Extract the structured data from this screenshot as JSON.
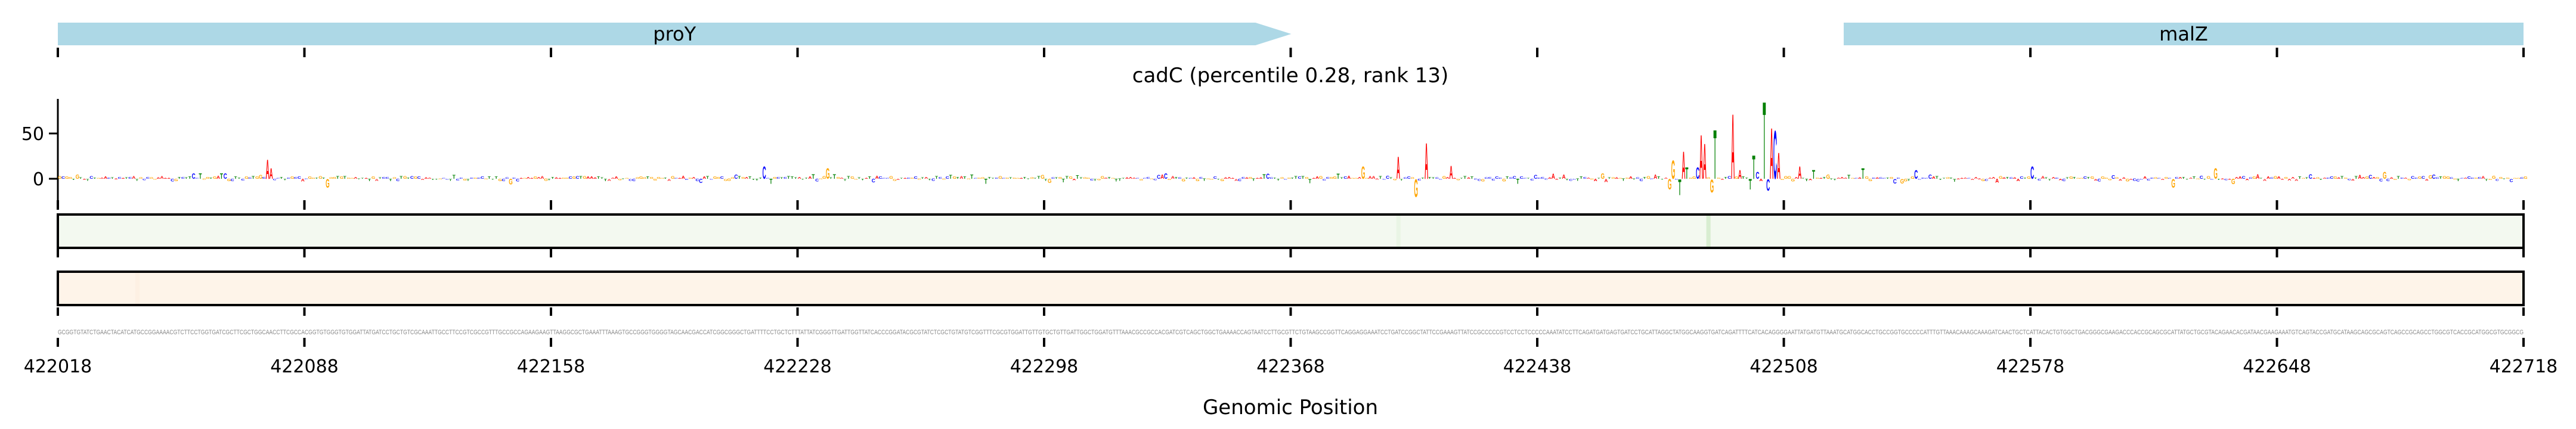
{
  "chart_data": {
    "type": "sequence-logo",
    "title": "cadC (percentile 0.28, rank 13)",
    "xlabel": "Genomic Position",
    "xlim": [
      422018,
      422718
    ],
    "x_ticks": [
      422018,
      422088,
      422158,
      422228,
      422298,
      422368,
      422438,
      422508,
      422578,
      422648,
      422718
    ],
    "x_tick_labels": [
      "422018",
      "422088",
      "422158",
      "422228",
      "422298",
      "422368",
      "422438",
      "422508",
      "422578",
      "422648",
      "422718"
    ],
    "ylim": [
      -20,
      90
    ],
    "y_ticks": [
      0,
      50
    ],
    "y_tick_labels": [
      "0",
      "50"
    ],
    "genes": [
      {
        "name": "proY",
        "start": 422018,
        "end": 422358,
        "strand": "+"
      },
      {
        "name": "malZ",
        "start": 422525,
        "end": 422718,
        "strand": "+"
      }
    ],
    "sequence": "GCGGTGTATCTGAACTACATCATGCCGGAAAACGTCTTCCTGGTGATCGCTTCGCTGGCAACCTTCGCCACGGTGTGGGTGTGGATTATGATCCTGCTGTCGCAAATTGCCTTCCGTCGCCGTTTGCCGCCAGAAGAAGTTAAGGCGCTGAAATTTAAAGTGCCGGGTGGGGTAGCAACGACCATCGGCGGGCTGATTTTCCTGCTCTTTATTATCGGGTTGATTGGTTATCACCCGGATACGCGTATCTCGCTGTATGTCGGTTTCGCGTGGATTGTTGTGCTGTTGATTGGCTGGATGTTTAAACGCCGCCACGATCGTCAGCTGGCTGAAAACCAGTAATCCTTGCGTTCTGTAAGCCGGTTCAGGAGGAAATCCTGATCCGGCTATTCCGAAAGTTATCCGCCCCCGTCCTCCTCCCCCAAATATCCTTCAGATGATGAGTGATCCTGCATTAGGCTATGGCAAGGTGATCAGATTTTCATCACAGGGGAATTATGATGTTAAATGCATGGCACCTGCCGGTGCCCCCATTTGTTAAACAAAGCAAAGATCAACTGCTCATTACACTGTGGCTGACGGGCGAAGACCCACCGCAGCGCATTATGCTGCGTACAGAACACGATAACGAAGAAATGTCAGTACCGATGCATAAGCAGCGCAGTCAGCCGCAGCCTGGCGTCACCGCATGGCGTGCGGCG",
    "attribution_peaks": [
      {
        "offset": 59,
        "value": 22
      },
      {
        "offset": 60,
        "value": 12
      },
      {
        "offset": 76,
        "value": -10
      },
      {
        "offset": 200,
        "value": 14
      },
      {
        "offset": 218,
        "value": 12
      },
      {
        "offset": 370,
        "value": 14
      },
      {
        "offset": 380,
        "value": 25
      },
      {
        "offset": 385,
        "value": -20
      },
      {
        "offset": 388,
        "value": 41
      },
      {
        "offset": 395,
        "value": 15
      },
      {
        "offset": 457,
        "value": -12
      },
      {
        "offset": 458,
        "value": 21
      },
      {
        "offset": 460,
        "value": -18
      },
      {
        "offset": 461,
        "value": 31
      },
      {
        "offset": 462,
        "value": 13
      },
      {
        "offset": 465,
        "value": 13
      },
      {
        "offset": 466,
        "value": 50
      },
      {
        "offset": 467,
        "value": 40
      },
      {
        "offset": 469,
        "value": -15
      },
      {
        "offset": 470,
        "value": 56
      },
      {
        "offset": 475,
        "value": 74
      },
      {
        "offset": 477,
        "value": 10
      },
      {
        "offset": 480,
        "value": -12
      },
      {
        "offset": 481,
        "value": 27
      },
      {
        "offset": 482,
        "value": 8
      },
      {
        "offset": 484,
        "value": 88
      },
      {
        "offset": 485,
        "value": -13
      },
      {
        "offset": 486,
        "value": 58
      },
      {
        "offset": 487,
        "value": 55
      },
      {
        "offset": 488,
        "value": 30
      },
      {
        "offset": 494,
        "value": 14
      },
      {
        "offset": 498,
        "value": 10
      },
      {
        "offset": 512,
        "value": 12
      },
      {
        "offset": 527,
        "value": 10
      },
      {
        "offset": 560,
        "value": 14
      },
      {
        "offset": 600,
        "value": -10
      },
      {
        "offset": 612,
        "value": 12
      },
      {
        "offset": 660,
        "value": 8
      }
    ],
    "track1_highlights": [
      {
        "offset": 468,
        "intensity": 0.35
      },
      {
        "offset": 380,
        "intensity": 0.12
      }
    ],
    "track2_highlights": [
      {
        "offset": 22,
        "intensity": 0.08
      }
    ]
  },
  "colors": {
    "gene": "#add8e6",
    "A": "#ff0000",
    "C": "#0000ff",
    "G": "#ffa500",
    "T": "#008000",
    "track1": "#f3f9f0",
    "track1_strong": "#d3eacd",
    "track2": "#fef4e9",
    "track2_strong": "#fbe3cf",
    "sequence": "#8a8a8a"
  }
}
